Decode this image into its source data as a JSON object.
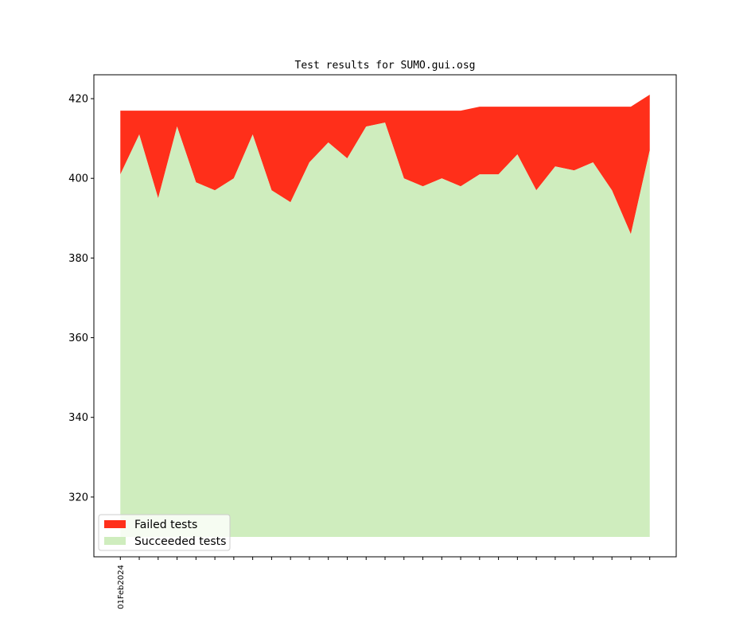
{
  "chart_data": {
    "type": "area",
    "title": "Test results for SUMO.gui.osg",
    "xlabel": "",
    "ylabel": "",
    "ylim": [
      305,
      426
    ],
    "yticks": [
      320,
      340,
      360,
      380,
      400,
      420
    ],
    "ytick_labels": [
      "320",
      "340",
      "360",
      "380",
      "400",
      "420"
    ],
    "xlim": [
      -1.4,
      29.4
    ],
    "xtick_label": "01Feb2024",
    "xtick_label_index": 0,
    "baseline": 310,
    "x": [
      0,
      1,
      2,
      3,
      4,
      5,
      6,
      7,
      8,
      9,
      10,
      11,
      12,
      13,
      14,
      15,
      16,
      17,
      18,
      19,
      20,
      21,
      22,
      23,
      24,
      25,
      26,
      27,
      28
    ],
    "stacked": true,
    "series": [
      {
        "name": "Succeeded tests",
        "color": "#cfedbe",
        "values": [
          401,
          411,
          395,
          413,
          399,
          397,
          400,
          411,
          397,
          394,
          404,
          409,
          405,
          413,
          414,
          400,
          398,
          400,
          398,
          401,
          401,
          406,
          397,
          403,
          402,
          404,
          397,
          386,
          407
        ]
      },
      {
        "name": "Failed tests",
        "color": "#ff2f1a",
        "totals": [
          417,
          417,
          417,
          417,
          417,
          417,
          417,
          417,
          417,
          417,
          417,
          417,
          417,
          417,
          417,
          417,
          417,
          417,
          417,
          418,
          418,
          418,
          418,
          418,
          418,
          418,
          418,
          418,
          421
        ]
      }
    ],
    "legend_placement": "lower-left",
    "grid": false
  }
}
